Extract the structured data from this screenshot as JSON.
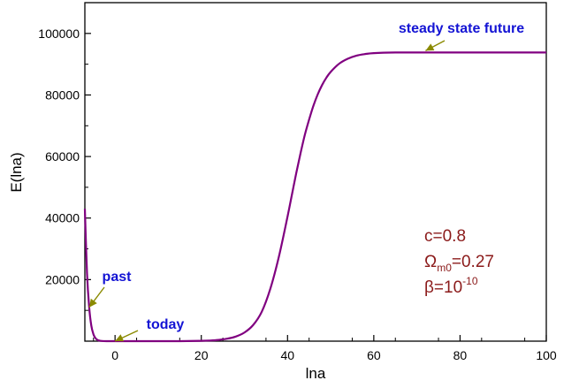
{
  "chart_data": {
    "type": "line",
    "xlabel": "lna",
    "ylabel": "E(lna)",
    "xlim": [
      -7,
      100
    ],
    "ylim": [
      0,
      110000
    ],
    "xticks": [
      0,
      20,
      40,
      60,
      80,
      100
    ],
    "yticks": [
      20000,
      40000,
      60000,
      80000,
      100000
    ],
    "xtick_labels": [
      "0",
      "20",
      "40",
      "60",
      "80",
      "100"
    ],
    "ytick_labels": [
      "20000",
      "40000",
      "60000",
      "80000",
      "100000"
    ],
    "grid": false,
    "legend": "none",
    "series": [
      {
        "color": "#800080",
        "x": [
          -7,
          -6.5,
          -6,
          -5.5,
          -5,
          -4.5,
          -4,
          -3.5,
          -3,
          -2,
          -1,
          0,
          5,
          10,
          15,
          20,
          22,
          24,
          26,
          28,
          30,
          32,
          34,
          36,
          38,
          40,
          41,
          42,
          43,
          44,
          45,
          46,
          47,
          48,
          49,
          50,
          52,
          54,
          56,
          58,
          60,
          65,
          70,
          80,
          90,
          100
        ],
        "y": [
          43000,
          22000,
          11000,
          5000,
          2200,
          900,
          350,
          130,
          50,
          10,
          2,
          0,
          0,
          0,
          0,
          100,
          200,
          400,
          800,
          1500,
          2800,
          5200,
          9500,
          17000,
          27500,
          40500,
          47500,
          54500,
          61000,
          67000,
          72000,
          76500,
          80200,
          83200,
          85600,
          87500,
          90200,
          91800,
          92800,
          93300,
          93600,
          93800,
          93800,
          93800,
          93800,
          93800
        ]
      }
    ],
    "annotations": [
      {
        "text": "steady state future",
        "color": "#1414d4",
        "arrow_to": [
          72,
          93800
        ]
      },
      {
        "text": "past",
        "color": "#1414d4",
        "arrow_to": [
          -6,
          11000
        ]
      },
      {
        "text": "today",
        "color": "#1414d4",
        "arrow_to": [
          0,
          0
        ]
      }
    ]
  },
  "params": {
    "color": "#8b1a1a",
    "c": "c=0.8",
    "omega_symbol": "Ω",
    "omega_sub": "m0",
    "omega_val": "=0.27",
    "beta_base": "β=10",
    "beta_exp": "-10"
  },
  "arrow_color": "#8a8a00"
}
